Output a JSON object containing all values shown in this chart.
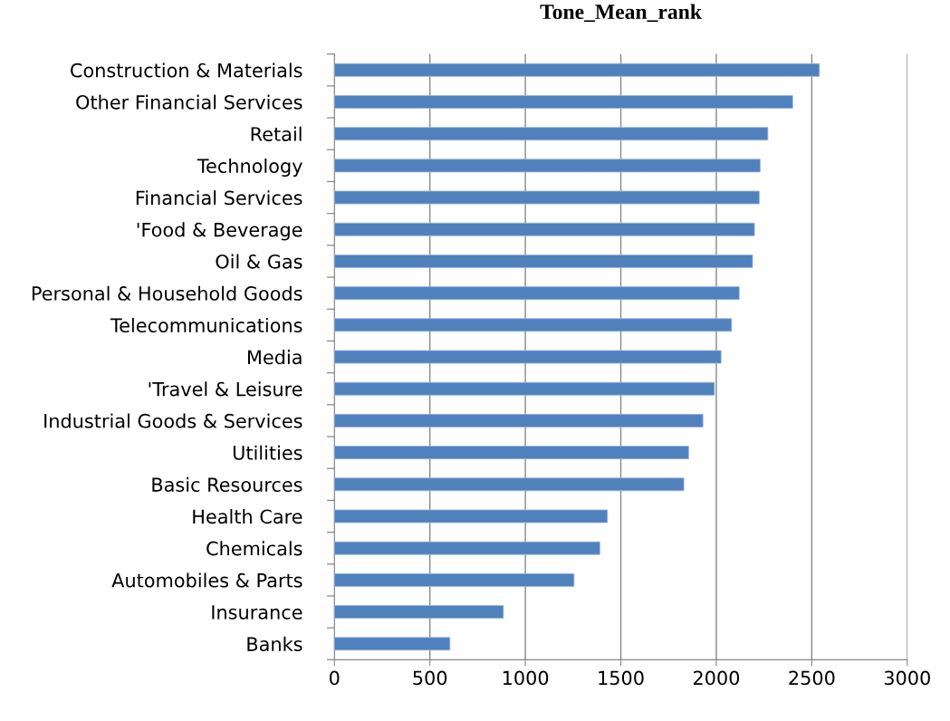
{
  "chart_data": {
    "type": "bar",
    "orientation": "horizontal",
    "title": "Tone_Mean_rank",
    "categories": [
      "Construction & Materials",
      "Other Financial Services",
      "Retail",
      "Technology",
      "Financial Services",
      "'Food & Beverage",
      "Oil & Gas",
      "Personal & Household Goods",
      "Telecommunications",
      "Media",
      "'Travel & Leisure",
      "Industrial Goods & Services",
      "Utilities",
      "Basic Resources",
      "Health Care",
      "Chemicals",
      "Automobiles & Parts",
      "Insurance",
      "Banks"
    ],
    "values": [
      2540,
      2400,
      2270,
      2230,
      2225,
      2200,
      2190,
      2120,
      2080,
      2025,
      1990,
      1930,
      1855,
      1830,
      1430,
      1390,
      1255,
      885,
      605
    ],
    "color": "#4f81bd",
    "xlim": [
      0,
      3000
    ],
    "xticks": [
      0,
      500,
      1000,
      1500,
      2000,
      2500,
      3000
    ],
    "grid": "x",
    "legend": false
  }
}
